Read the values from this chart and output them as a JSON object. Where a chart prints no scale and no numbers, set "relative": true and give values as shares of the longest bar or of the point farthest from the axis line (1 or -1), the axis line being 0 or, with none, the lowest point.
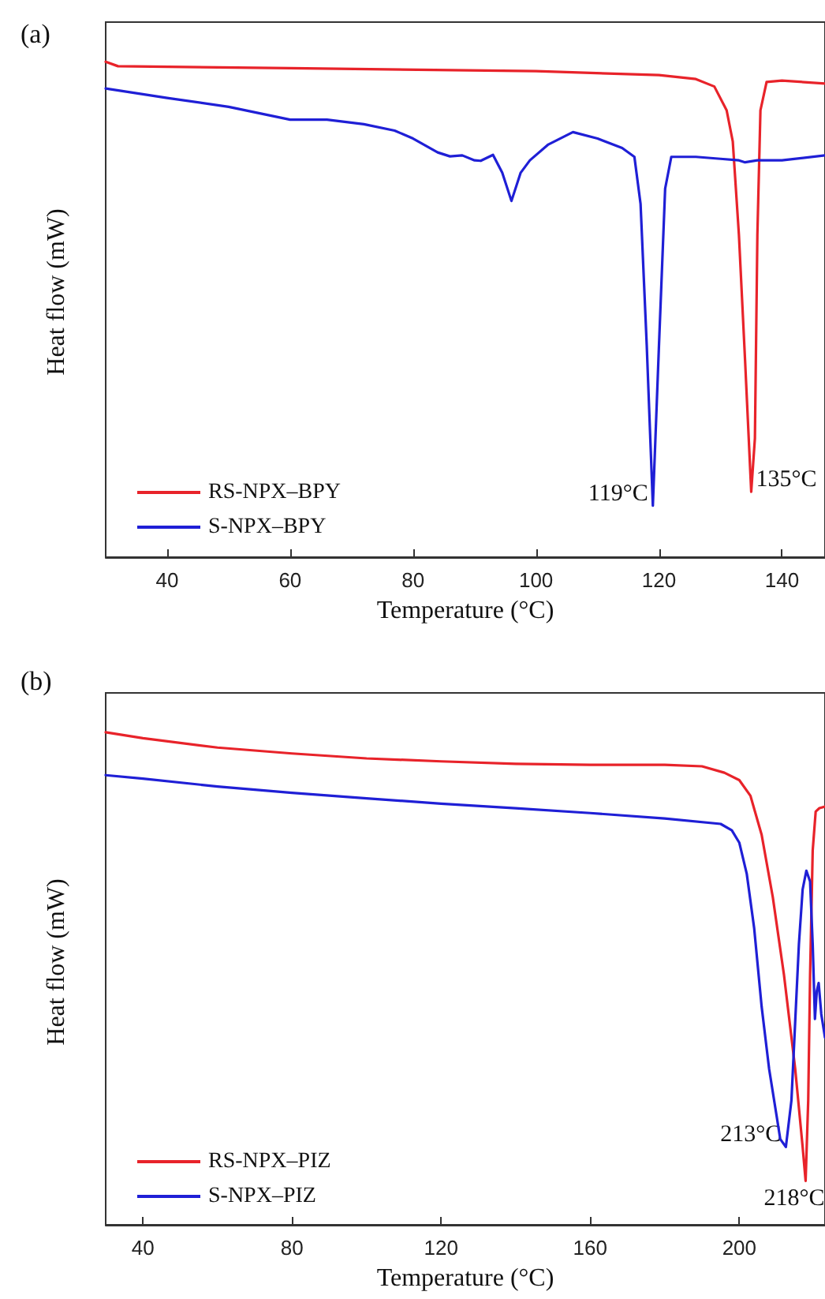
{
  "chart_data": [
    {
      "type": "line",
      "title": "(a)",
      "xlabel": "Temperature (°C)",
      "ylabel": "Heat flow (mW)",
      "relative": true,
      "legend": "bottom left",
      "marker": "none",
      "line_style": "solid",
      "grid": false,
      "xlim": [
        30,
        147
      ],
      "xticks": [
        40,
        60,
        80,
        100,
        120,
        140
      ],
      "annotations": [
        {
          "text": "119°C",
          "x": 119,
          "y": 0.104
        },
        {
          "text": "135°C",
          "x": 135,
          "y": 0.132
        }
      ],
      "series": [
        {
          "name": "RS-NPX–BPY",
          "color": "#e8232a",
          "x": [
            30,
            32,
            60,
            100,
            120,
            126,
            129,
            131,
            132,
            133,
            134,
            135,
            135.6,
            136,
            136.5,
            137.5,
            140,
            147
          ],
          "values": [
            1,
            0.991,
            0.987,
            0.981,
            0.973,
            0.965,
            0.95,
            0.902,
            0.839,
            0.65,
            0.397,
            0.132,
            0.24,
            0.65,
            0.902,
            0.959,
            0.962,
            0.956
          ]
        },
        {
          "name": "S-NPX–BPY",
          "color": "#1f1fd6",
          "x": [
            30,
            40,
            50,
            60,
            66,
            72,
            77,
            80,
            84,
            86,
            88,
            90,
            91,
            93,
            94.5,
            96,
            97.5,
            99,
            102,
            106,
            110,
            114,
            116,
            117,
            118,
            119,
            120,
            121,
            122,
            126,
            130,
            133,
            134,
            136,
            140,
            147
          ],
          "values": [
            0.946,
            0.927,
            0.909,
            0.883,
            0.883,
            0.874,
            0.861,
            0.845,
            0.817,
            0.809,
            0.811,
            0.801,
            0.8,
            0.812,
            0.776,
            0.719,
            0.776,
            0.801,
            0.833,
            0.858,
            0.845,
            0.826,
            0.808,
            0.713,
            0.429,
            0.104,
            0.429,
            0.744,
            0.808,
            0.808,
            0.804,
            0.801,
            0.797,
            0.801,
            0.801,
            0.811
          ]
        }
      ]
    },
    {
      "type": "line",
      "title": "(b)",
      "xlabel": "Temperature (°C)",
      "ylabel": "Heat flow (mW)",
      "relative": true,
      "legend": "bottom left",
      "marker": "none",
      "line_style": "solid",
      "grid": false,
      "xlim": [
        30,
        223
      ],
      "xticks": [
        40,
        80,
        120,
        160,
        200
      ],
      "annotations": [
        {
          "text": "213°C",
          "x": 212.5,
          "y": 0.158
        },
        {
          "text": "218°C",
          "x": 217.8,
          "y": 0.089
        }
      ],
      "series": [
        {
          "name": "RS-NPX–PIZ",
          "color": "#e8232a",
          "x": [
            30,
            40,
            60,
            80,
            100,
            120,
            140,
            160,
            180,
            190,
            196,
            200,
            203,
            206,
            209,
            212,
            215,
            217,
            217.8,
            218.5,
            219,
            219.7,
            220.5,
            221.5,
            223
          ],
          "values": [
            1,
            0.988,
            0.969,
            0.957,
            0.947,
            0.941,
            0.936,
            0.934,
            0.934,
            0.931,
            0.918,
            0.903,
            0.871,
            0.792,
            0.665,
            0.507,
            0.317,
            0.158,
            0.089,
            0.253,
            0.507,
            0.76,
            0.839,
            0.846,
            0.849
          ]
        },
        {
          "name": "S-NPX–PIZ",
          "color": "#1f1fd6",
          "x": [
            30,
            40,
            60,
            80,
            100,
            120,
            140,
            160,
            180,
            195,
            198,
            200,
            202,
            204,
            206,
            208,
            210,
            211,
            212.5,
            214,
            215,
            216,
            217,
            218,
            219,
            219.7,
            220.3,
            220.8,
            221.3,
            222,
            223
          ],
          "values": [
            0.913,
            0.906,
            0.89,
            0.877,
            0.866,
            0.855,
            0.846,
            0.836,
            0.825,
            0.814,
            0.801,
            0.776,
            0.713,
            0.602,
            0.443,
            0.317,
            0.222,
            0.174,
            0.158,
            0.253,
            0.412,
            0.57,
            0.681,
            0.719,
            0.697,
            0.57,
            0.418,
            0.475,
            0.491,
            0.428,
            0.38
          ]
        }
      ]
    }
  ]
}
